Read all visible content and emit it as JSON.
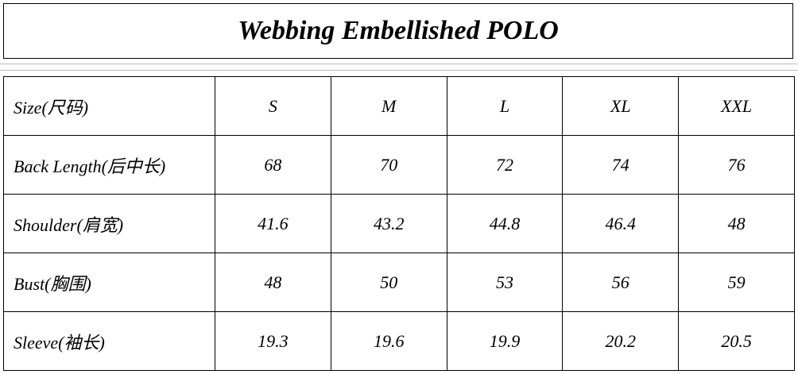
{
  "header": {
    "title": "Webbing Embellished POLO"
  },
  "table": {
    "header": [
      "Size(尺码)",
      "S",
      "M",
      "L",
      "XL",
      "XXL"
    ],
    "rows": [
      [
        "Back Length(后中长)",
        "68",
        "70",
        "72",
        "74",
        "76"
      ],
      [
        "Shoulder(肩宽)",
        "41.6",
        "43.2",
        "44.8",
        "46.4",
        "48"
      ],
      [
        "Bust(胸围)",
        "48",
        "50",
        "53",
        "56",
        "59"
      ],
      [
        "Sleeve(袖长)",
        "19.3",
        "19.6",
        "19.9",
        "20.2",
        "20.5"
      ]
    ]
  }
}
